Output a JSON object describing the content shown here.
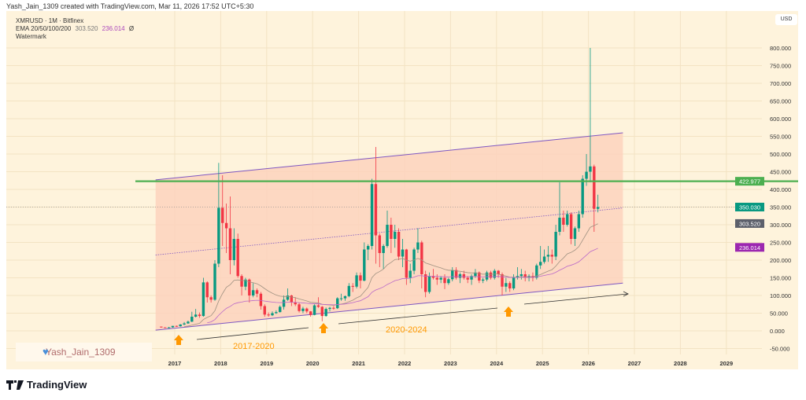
{
  "credit": "Yash_Jain_1309 created with TradingView.com, Mar 11, 2026 17:52 UTC+5:30",
  "legend": {
    "symbol": "XMRUSD · 1M · Bitfinex",
    "ema_label": "EMA 20/50/100/200",
    "ema20": "303.520",
    "ema50": "236.014",
    "ema_extra": "Ø",
    "watermark_label": "Watermark"
  },
  "currency": "USD",
  "watermark": {
    "text": "Yash_Jain_1309",
    "icon": "blue-heart-icon"
  },
  "brand": "TradingView",
  "colors": {
    "up": "#089981",
    "down": "#f23645",
    "channel": "#7e57c2",
    "resistance": "#4caf50",
    "ema20": "#a09282",
    "ema50": "#ba68c8",
    "fill": "#fdd2bd",
    "bg": "#fef3dc",
    "arrow": "#ff9800"
  },
  "chart_data": {
    "type": "candlestick",
    "interval": "1M",
    "start_month": "2016-09",
    "ylim": [
      -80,
      860
    ],
    "y_ticks": [
      -50,
      0,
      50,
      100,
      150,
      200,
      250,
      300,
      350,
      400,
      450,
      500,
      550,
      600,
      650,
      700,
      750,
      800
    ],
    "y_tick_labels": [
      "-50.000",
      "0.000",
      "50.000",
      "100.000",
      "150.000",
      "200.000",
      "250.000",
      "300.000",
      "350.000",
      "400.000",
      "450.000",
      "500.000",
      "550.000",
      "600.000",
      "650.000",
      "700.000",
      "750.000",
      "800.000"
    ],
    "x_ticks": [
      "2017",
      "2018",
      "2019",
      "2020",
      "2021",
      "2022",
      "2023",
      "2024",
      "2025",
      "2026",
      "2027",
      "2028",
      "2029"
    ],
    "ohlc": [
      [
        12,
        12,
        9,
        10
      ],
      [
        10,
        10,
        8,
        9
      ],
      [
        9,
        11,
        8,
        10
      ],
      [
        10,
        14,
        9,
        14
      ],
      [
        14,
        15,
        11,
        13
      ],
      [
        13,
        19,
        12,
        18
      ],
      [
        18,
        25,
        16,
        21
      ],
      [
        21,
        29,
        20,
        26
      ],
      [
        26,
        54,
        25,
        40
      ],
      [
        40,
        62,
        38,
        46
      ],
      [
        46,
        52,
        37,
        42
      ],
      [
        42,
        150,
        40,
        137
      ],
      [
        137,
        140,
        80,
        95
      ],
      [
        95,
        100,
        80,
        88
      ],
      [
        88,
        200,
        85,
        190
      ],
      [
        190,
        475,
        180,
        348
      ],
      [
        348,
        440,
        240,
        305
      ],
      [
        305,
        360,
        220,
        290
      ],
      [
        290,
        380,
        160,
        200
      ],
      [
        200,
        290,
        185,
        260
      ],
      [
        260,
        275,
        150,
        155
      ],
      [
        155,
        160,
        100,
        125
      ],
      [
        125,
        150,
        115,
        145
      ],
      [
        145,
        148,
        80,
        100
      ],
      [
        100,
        135,
        95,
        115
      ],
      [
        115,
        120,
        95,
        105
      ],
      [
        105,
        110,
        60,
        70
      ],
      [
        70,
        75,
        40,
        46
      ],
      [
        46,
        52,
        40,
        44
      ],
      [
        44,
        55,
        42,
        50
      ],
      [
        50,
        58,
        48,
        53
      ],
      [
        53,
        72,
        52,
        68
      ],
      [
        68,
        100,
        60,
        88
      ],
      [
        88,
        120,
        85,
        100
      ],
      [
        100,
        102,
        70,
        80
      ],
      [
        80,
        95,
        70,
        75
      ],
      [
        75,
        80,
        52,
        56
      ],
      [
        56,
        68,
        50,
        63
      ],
      [
        63,
        66,
        50,
        55
      ],
      [
        55,
        56,
        40,
        45
      ],
      [
        45,
        75,
        44,
        72
      ],
      [
        72,
        95,
        65,
        68
      ],
      [
        68,
        70,
        27,
        42
      ],
      [
        42,
        66,
        40,
        62
      ],
      [
        62,
        68,
        55,
        65
      ],
      [
        65,
        70,
        60,
        64
      ],
      [
        64,
        95,
        62,
        92
      ],
      [
        92,
        105,
        85,
        92
      ],
      [
        92,
        100,
        85,
        98
      ],
      [
        98,
        135,
        95,
        127
      ],
      [
        127,
        135,
        110,
        125
      ],
      [
        125,
        165,
        120,
        157
      ],
      [
        157,
        165,
        120,
        142
      ],
      [
        142,
        250,
        140,
        230
      ],
      [
        230,
        245,
        200,
        240
      ],
      [
        240,
        430,
        230,
        415
      ],
      [
        415,
        520,
        190,
        270
      ],
      [
        270,
        275,
        180,
        220
      ],
      [
        220,
        245,
        175,
        240
      ],
      [
        240,
        340,
        235,
        300
      ],
      [
        300,
        320,
        220,
        260
      ],
      [
        260,
        300,
        235,
        280
      ],
      [
        280,
        290,
        200,
        210
      ],
      [
        210,
        260,
        180,
        230
      ],
      [
        230,
        232,
        130,
        150
      ],
      [
        150,
        190,
        135,
        170
      ],
      [
        170,
        235,
        160,
        230
      ],
      [
        230,
        290,
        220,
        250
      ],
      [
        250,
        255,
        120,
        160
      ],
      [
        160,
        170,
        95,
        110
      ],
      [
        110,
        165,
        105,
        155
      ],
      [
        155,
        175,
        145,
        150
      ],
      [
        150,
        160,
        130,
        145
      ],
      [
        145,
        155,
        135,
        150
      ],
      [
        150,
        160,
        118,
        135
      ],
      [
        135,
        150,
        130,
        146
      ],
      [
        146,
        180,
        140,
        172
      ],
      [
        172,
        180,
        145,
        150
      ],
      [
        150,
        165,
        135,
        160
      ],
      [
        160,
        170,
        145,
        150
      ],
      [
        150,
        155,
        135,
        145
      ],
      [
        145,
        160,
        130,
        155
      ],
      [
        155,
        175,
        150,
        165
      ],
      [
        165,
        168,
        135,
        142
      ],
      [
        142,
        150,
        135,
        145
      ],
      [
        145,
        170,
        140,
        165
      ],
      [
        165,
        170,
        145,
        150
      ],
      [
        150,
        175,
        145,
        170
      ],
      [
        170,
        172,
        150,
        160
      ],
      [
        160,
        165,
        100,
        125
      ],
      [
        125,
        150,
        110,
        135
      ],
      [
        135,
        140,
        110,
        120
      ],
      [
        120,
        160,
        115,
        150
      ],
      [
        150,
        180,
        145,
        155
      ],
      [
        155,
        175,
        145,
        160
      ],
      [
        160,
        170,
        140,
        150
      ],
      [
        150,
        160,
        140,
        155
      ],
      [
        155,
        165,
        140,
        150
      ],
      [
        150,
        190,
        145,
        185
      ],
      [
        185,
        240,
        175,
        195
      ],
      [
        195,
        230,
        190,
        210
      ],
      [
        210,
        240,
        195,
        215
      ],
      [
        215,
        230,
        190,
        210
      ],
      [
        210,
        300,
        200,
        280
      ],
      [
        280,
        420,
        270,
        320
      ],
      [
        320,
        340,
        280,
        300
      ],
      [
        300,
        340,
        295,
        330
      ],
      [
        330,
        335,
        245,
        260
      ],
      [
        260,
        295,
        240,
        290
      ],
      [
        290,
        340,
        280,
        330
      ],
      [
        330,
        440,
        320,
        430
      ],
      [
        430,
        500,
        410,
        450
      ],
      [
        450,
        800,
        420,
        465
      ],
      [
        465,
        470,
        280,
        345
      ],
      [
        345,
        385,
        335,
        350
      ]
    ],
    "indicators": {
      "ema20_last": 303.52,
      "ema50_last": 236.014
    },
    "price_labels": {
      "resistance": "422.977",
      "last": "350.030",
      "ema20": "303.520",
      "ema50": "236.014"
    },
    "levels": {
      "resistance": 422.977,
      "last": 350.03
    },
    "channel": {
      "start": "2016-08",
      "end": "2026-10",
      "lower": [
        2,
        135
      ],
      "upper": [
        427,
        560
      ]
    },
    "annotations": [
      {
        "text": "2017-2020"
      },
      {
        "text": "2020-2024"
      }
    ]
  }
}
